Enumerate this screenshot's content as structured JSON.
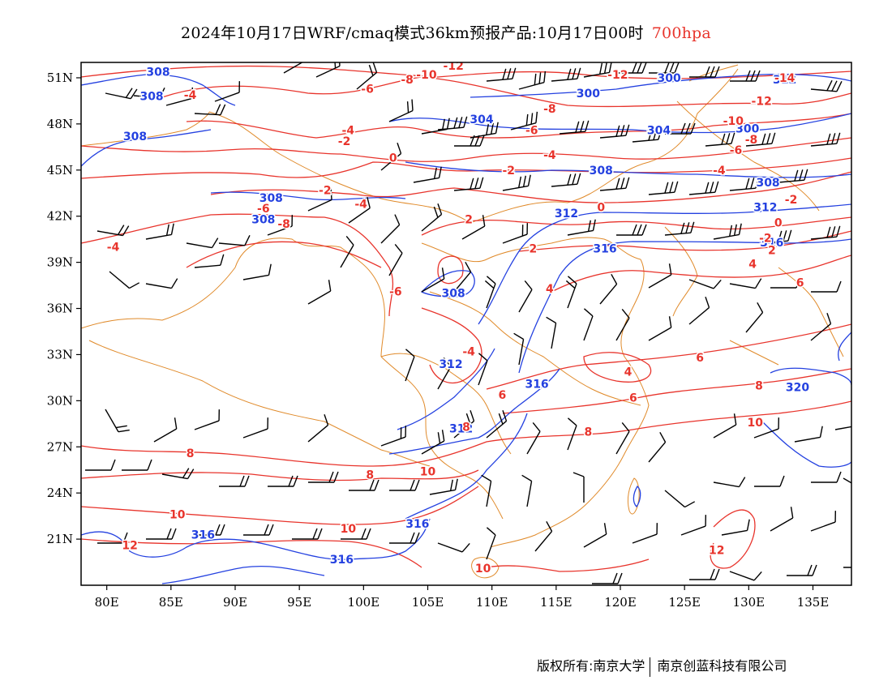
{
  "title": {
    "main": "2024年10月17日WRF/cmaq模式36km预报产品:10月17日00时",
    "level": "700hpa"
  },
  "axes": {
    "lon_labels": [
      "80E",
      "85E",
      "90E",
      "95E",
      "100E",
      "105E",
      "110E",
      "115E",
      "120E",
      "125E",
      "130E",
      "135E"
    ],
    "lon_values": [
      80,
      85,
      90,
      95,
      100,
      105,
      110,
      115,
      120,
      125,
      130,
      135
    ],
    "lat_labels": [
      "51N",
      "48N",
      "45N",
      "42N",
      "39N",
      "36N",
      "33N",
      "30N",
      "27N",
      "24N",
      "21N"
    ],
    "lat_values": [
      51,
      48,
      45,
      42,
      39,
      36,
      33,
      30,
      27,
      24,
      21
    ],
    "lon_range": [
      78,
      138
    ],
    "lat_range": [
      18,
      52
    ]
  },
  "contours": {
    "geopotential_color": "#2441e0",
    "temperature_color": "#e8342c",
    "boundary_color": "#e08a2a",
    "wind_color": "#000000",
    "geopotential_labels": [
      {
        "text": "308",
        "lon": 84.0,
        "lat": 51.4
      },
      {
        "text": "308",
        "lon": 83.5,
        "lat": 49.8
      },
      {
        "text": "308",
        "lon": 82.2,
        "lat": 47.2
      },
      {
        "text": "308",
        "lon": 92.8,
        "lat": 43.2
      },
      {
        "text": "308",
        "lon": 92.2,
        "lat": 41.8
      },
      {
        "text": "308",
        "lon": 107.0,
        "lat": 37.0
      },
      {
        "text": "312",
        "lon": 106.8,
        "lat": 32.4
      },
      {
        "text": "316",
        "lon": 113.5,
        "lat": 31.1
      },
      {
        "text": "312",
        "lon": 107.6,
        "lat": 28.2
      },
      {
        "text": "316",
        "lon": 104.2,
        "lat": 22.0
      },
      {
        "text": "316",
        "lon": 87.5,
        "lat": 21.3
      },
      {
        "text": "316",
        "lon": 98.3,
        "lat": 19.7
      },
      {
        "text": "312",
        "lon": 115.8,
        "lat": 42.2
      },
      {
        "text": "316",
        "lon": 118.8,
        "lat": 39.9
      },
      {
        "text": "300",
        "lon": 117.5,
        "lat": 50.0
      },
      {
        "text": "304",
        "lon": 109.2,
        "lat": 48.3
      },
      {
        "text": "304",
        "lon": 123.0,
        "lat": 47.6
      },
      {
        "text": "308",
        "lon": 118.5,
        "lat": 45.0
      },
      {
        "text": "308",
        "lon": 131.5,
        "lat": 44.2
      },
      {
        "text": "312",
        "lon": 131.3,
        "lat": 42.6
      },
      {
        "text": "316",
        "lon": 131.8,
        "lat": 40.3
      },
      {
        "text": "300",
        "lon": 129.9,
        "lat": 47.7
      },
      {
        "text": "300",
        "lon": 123.8,
        "lat": 51.0
      },
      {
        "text": "312",
        "lon": 132.8,
        "lat": 50.9
      },
      {
        "text": "320",
        "lon": 133.8,
        "lat": 30.9
      }
    ],
    "temperature_labels": [
      {
        "text": "-4",
        "lon": 86.5,
        "lat": 49.9
      },
      {
        "text": "-6",
        "lon": 100.3,
        "lat": 50.3
      },
      {
        "text": "-8",
        "lon": 103.4,
        "lat": 50.9
      },
      {
        "text": "-10",
        "lon": 104.9,
        "lat": 51.2
      },
      {
        "text": "-12",
        "lon": 107.0,
        "lat": 51.8
      },
      {
        "text": "-12",
        "lon": 119.8,
        "lat": 51.2
      },
      {
        "text": "-14",
        "lon": 132.8,
        "lat": 51.0
      },
      {
        "text": "-12",
        "lon": 131.0,
        "lat": 49.5
      },
      {
        "text": "-10",
        "lon": 128.8,
        "lat": 48.2
      },
      {
        "text": "-8",
        "lon": 130.2,
        "lat": 47.0
      },
      {
        "text": "-8",
        "lon": 114.5,
        "lat": 49.0
      },
      {
        "text": "-6",
        "lon": 113.1,
        "lat": 47.6
      },
      {
        "text": "-6",
        "lon": 129.0,
        "lat": 46.3
      },
      {
        "text": "-4",
        "lon": 114.5,
        "lat": 46.0
      },
      {
        "text": "-4",
        "lon": 127.7,
        "lat": 45.0
      },
      {
        "text": "-4",
        "lon": 98.8,
        "lat": 47.6
      },
      {
        "text": "-2",
        "lon": 98.5,
        "lat": 46.9
      },
      {
        "text": "0",
        "lon": 102.3,
        "lat": 45.8
      },
      {
        "text": "-2",
        "lon": 111.3,
        "lat": 45.0
      },
      {
        "text": "-2",
        "lon": 97.0,
        "lat": 43.7
      },
      {
        "text": "-4",
        "lon": 99.8,
        "lat": 42.8
      },
      {
        "text": "-6",
        "lon": 92.2,
        "lat": 42.5
      },
      {
        "text": "-8",
        "lon": 93.8,
        "lat": 41.5
      },
      {
        "text": "-4",
        "lon": 80.5,
        "lat": 40.0
      },
      {
        "text": "2",
        "lon": 108.2,
        "lat": 41.8
      },
      {
        "text": "0",
        "lon": 118.5,
        "lat": 42.6
      },
      {
        "text": "-2",
        "lon": 133.3,
        "lat": 43.1
      },
      {
        "text": "0",
        "lon": 132.3,
        "lat": 41.6
      },
      {
        "text": "-2",
        "lon": 131.3,
        "lat": 40.6
      },
      {
        "text": "2",
        "lon": 131.8,
        "lat": 39.8
      },
      {
        "text": "4",
        "lon": 130.3,
        "lat": 38.9
      },
      {
        "text": "2",
        "lon": 113.2,
        "lat": 39.9
      },
      {
        "text": "6",
        "lon": 134.0,
        "lat": 37.7
      },
      {
        "text": "4",
        "lon": 114.5,
        "lat": 37.3
      },
      {
        "text": "-6",
        "lon": 102.5,
        "lat": 37.1
      },
      {
        "text": "-4",
        "lon": 108.2,
        "lat": 33.2
      },
      {
        "text": "4",
        "lon": 120.6,
        "lat": 31.9
      },
      {
        "text": "6",
        "lon": 126.2,
        "lat": 32.8
      },
      {
        "text": "6",
        "lon": 110.8,
        "lat": 30.4
      },
      {
        "text": "6",
        "lon": 121.0,
        "lat": 30.2
      },
      {
        "text": "8",
        "lon": 108.0,
        "lat": 28.3
      },
      {
        "text": "8",
        "lon": 130.8,
        "lat": 31.0
      },
      {
        "text": "8",
        "lon": 117.5,
        "lat": 28.0
      },
      {
        "text": "10",
        "lon": 130.5,
        "lat": 28.6
      },
      {
        "text": "8",
        "lon": 86.5,
        "lat": 26.6
      },
      {
        "text": "8",
        "lon": 100.5,
        "lat": 25.2
      },
      {
        "text": "10",
        "lon": 105.0,
        "lat": 25.4
      },
      {
        "text": "10",
        "lon": 85.5,
        "lat": 22.6
      },
      {
        "text": "10",
        "lon": 98.8,
        "lat": 21.7
      },
      {
        "text": "12",
        "lon": 81.8,
        "lat": 20.6
      },
      {
        "text": "12",
        "lon": 127.5,
        "lat": 20.3
      },
      {
        "text": "10",
        "lon": 109.3,
        "lat": 19.1
      }
    ]
  },
  "copyright": {
    "left": "版权所有:南京大学",
    "right": "南京创蓝科技有限公司"
  }
}
